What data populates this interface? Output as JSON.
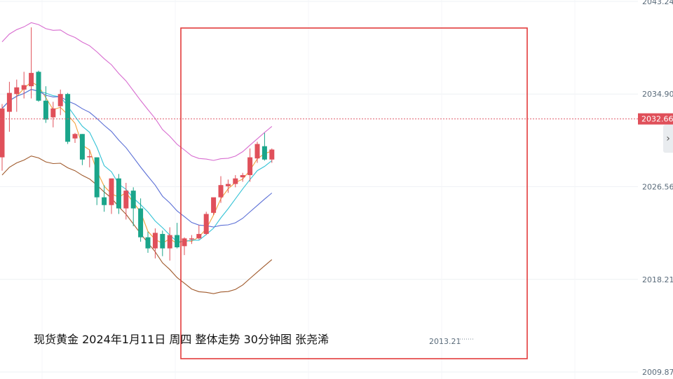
{
  "chart_data": {
    "type": "candlestick",
    "title": "现货黄金 2024年1月11日 周四 整体走势  30分钟图  张尧浠",
    "y_ticks": [
      2043.24,
      2034.9,
      2026.56,
      2018.21,
      2009.87
    ],
    "y_tick_labels": [
      "2043.24",
      "2034.90",
      "2026.56",
      "2018.21",
      "2009.87"
    ],
    "ylim": [
      2009.87,
      2043.24
    ],
    "current_price": 2032.66,
    "current_price_label": "2032.66",
    "low_annotation": {
      "value": 2013.21,
      "label": "2013.21",
      "bar_index": 53
    },
    "highlight_box": {
      "from_index": 20,
      "to_index": 58,
      "color": "#e23b3b"
    },
    "up_color": "#e0505a",
    "down_color": "#1aa58a",
    "candles": [
      {
        "o": 2029.2,
        "h": 2034.0,
        "l": 2028.0,
        "c": 2033.6
      },
      {
        "o": 2033.3,
        "h": 2036.0,
        "l": 2031.5,
        "c": 2035.0
      },
      {
        "o": 2034.9,
        "h": 2036.2,
        "l": 2033.3,
        "c": 2035.5
      },
      {
        "o": 2035.3,
        "h": 2036.9,
        "l": 2034.5,
        "c": 2035.7
      },
      {
        "o": 2035.6,
        "h": 2040.9,
        "l": 2034.5,
        "c": 2036.8
      },
      {
        "o": 2036.9,
        "h": 2037.0,
        "l": 2034.2,
        "c": 2034.3
      },
      {
        "o": 2034.3,
        "h": 2035.6,
        "l": 2032.3,
        "c": 2032.6
      },
      {
        "o": 2032.8,
        "h": 2034.2,
        "l": 2031.9,
        "c": 2033.6
      },
      {
        "o": 2033.8,
        "h": 2035.3,
        "l": 2033.0,
        "c": 2034.9
      },
      {
        "o": 2034.9,
        "h": 2035.0,
        "l": 2030.4,
        "c": 2030.6
      },
      {
        "o": 2030.9,
        "h": 2031.4,
        "l": 2030.5,
        "c": 2031.3
      },
      {
        "o": 2031.3,
        "h": 2031.3,
        "l": 2028.5,
        "c": 2029.0
      },
      {
        "o": 2029.3,
        "h": 2029.9,
        "l": 2028.3,
        "c": 2029.3
      },
      {
        "o": 2029.2,
        "h": 2029.2,
        "l": 2024.9,
        "c": 2025.6
      },
      {
        "o": 2025.6,
        "h": 2026.7,
        "l": 2024.3,
        "c": 2024.9
      },
      {
        "o": 2024.9,
        "h": 2027.3,
        "l": 2024.1,
        "c": 2027.3
      },
      {
        "o": 2027.3,
        "h": 2027.7,
        "l": 2024.1,
        "c": 2024.6
      },
      {
        "o": 2024.6,
        "h": 2026.9,
        "l": 2023.6,
        "c": 2026.2
      },
      {
        "o": 2026.2,
        "h": 2026.5,
        "l": 2023.0,
        "c": 2024.6
      },
      {
        "o": 2024.6,
        "h": 2025.5,
        "l": 2021.6,
        "c": 2022.0
      },
      {
        "o": 2022.0,
        "h": 2022.5,
        "l": 2020.6,
        "c": 2021.0
      },
      {
        "o": 2021.0,
        "h": 2022.8,
        "l": 2020.1,
        "c": 2022.4
      },
      {
        "o": 2022.3,
        "h": 2022.6,
        "l": 2020.3,
        "c": 2021.0
      },
      {
        "o": 2021.0,
        "h": 2022.9,
        "l": 2019.9,
        "c": 2022.2
      },
      {
        "o": 2022.2,
        "h": 2023.3,
        "l": 2021.0,
        "c": 2021.1
      },
      {
        "o": 2021.2,
        "h": 2022.0,
        "l": 2020.4,
        "c": 2021.9
      },
      {
        "o": 2021.9,
        "h": 2022.2,
        "l": 2021.4,
        "c": 2021.9
      },
      {
        "o": 2021.9,
        "h": 2023.1,
        "l": 2021.8,
        "c": 2022.3
      },
      {
        "o": 2022.3,
        "h": 2024.3,
        "l": 2022.2,
        "c": 2024.1
      },
      {
        "o": 2024.2,
        "h": 2025.3,
        "l": 2024.0,
        "c": 2025.6
      },
      {
        "o": 2025.6,
        "h": 2027.5,
        "l": 2025.1,
        "c": 2026.7
      },
      {
        "o": 2026.6,
        "h": 2027.2,
        "l": 2026.0,
        "c": 2026.8
      },
      {
        "o": 2026.8,
        "h": 2027.6,
        "l": 2026.5,
        "c": 2027.3
      },
      {
        "o": 2027.4,
        "h": 2027.8,
        "l": 2027.0,
        "c": 2027.6
      },
      {
        "o": 2027.6,
        "h": 2030.0,
        "l": 2027.0,
        "c": 2029.2
      },
      {
        "o": 2029.1,
        "h": 2030.6,
        "l": 2028.7,
        "c": 2030.4
      },
      {
        "o": 2030.2,
        "h": 2031.4,
        "l": 2028.9,
        "c": 2029.0
      },
      {
        "o": 2029.0,
        "h": 2030.0,
        "l": 2028.7,
        "c": 2029.9
      }
    ],
    "ma_lines": [
      {
        "name": "",
        "color": "#f2a03a"
      },
      {
        "name": "",
        "color": "#35c3d6"
      },
      {
        "name": "",
        "color": "#5b6fd6"
      },
      {
        "name": "",
        "color": "#d86dd0"
      },
      {
        "name": "",
        "color": "#a05a2c"
      }
    ],
    "grid": true
  },
  "ui": {
    "side_arrow": "›"
  }
}
